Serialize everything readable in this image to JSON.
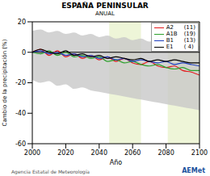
{
  "chart_data": {
    "type": "line",
    "title": "ESPAÑA PENINSULAR",
    "subtitle": "ANUAL",
    "x_label": "Año",
    "y_label": "Cambio de la precipitación (%)",
    "x": [
      2000,
      2005,
      2010,
      2015,
      2020,
      2025,
      2030,
      2035,
      2040,
      2045,
      2050,
      2055,
      2060,
      2065,
      2070,
      2075,
      2080,
      2085,
      2090,
      2095,
      2100
    ],
    "series": [
      {
        "name": "A2",
        "count_label": "(11)",
        "color": "#e41a1c",
        "values": [
          0,
          2,
          -2,
          1,
          -3,
          -1,
          -4,
          -2,
          -5,
          -3,
          -6,
          -4,
          -7,
          -8,
          -6,
          -9,
          -10,
          -9,
          -12,
          -13,
          -15
        ]
      },
      {
        "name": "A1B",
        "count_label": "(19)",
        "color": "#2ca02c",
        "values": [
          0,
          -1,
          1,
          -2,
          0,
          -3,
          -2,
          -4,
          -3,
          -6,
          -5,
          -7,
          -6,
          -8,
          -9,
          -8,
          -10,
          -11,
          -10,
          -12,
          -12
        ]
      },
      {
        "name": "B1",
        "count_label": "(13)",
        "color": "#1f3fbf",
        "values": [
          0,
          1,
          -1,
          0,
          -2,
          -1,
          -3,
          -2,
          -4,
          -3,
          -5,
          -4,
          -6,
          -5,
          -6,
          -7,
          -6,
          -8,
          -7,
          -8,
          -9
        ]
      },
      {
        "name": "E1",
        "count_label": "( 4)",
        "color": "#000000",
        "values": [
          0,
          2,
          0,
          -1,
          1,
          -2,
          -1,
          -3,
          -2,
          -4,
          -3,
          -4,
          -5,
          -4,
          -6,
          -5,
          -6,
          -5,
          -6,
          -7,
          -7
        ]
      }
    ],
    "band_low": [
      -18,
      -20,
      -19,
      -22,
      -21,
      -24,
      -23,
      -25,
      -26,
      -27,
      -28,
      -29,
      -30,
      -31,
      -32,
      -33,
      -34,
      -35,
      -36,
      -37,
      -38
    ],
    "band_high": [
      14,
      15,
      13,
      14,
      12,
      13,
      11,
      12,
      10,
      11,
      9,
      10,
      8,
      9,
      7,
      8,
      6,
      7,
      5,
      6,
      4
    ],
    "periods": [
      [
        2046,
        2065
      ],
      [
        2081,
        2100
      ]
    ],
    "hline": 0,
    "xlim": [
      2000,
      2100
    ],
    "xticks": [
      2000,
      2020,
      2040,
      2060,
      2080,
      2100
    ],
    "ylim": [
      -60,
      20
    ],
    "yticks": [
      -60,
      -40,
      -20,
      0,
      20
    ],
    "grid": false,
    "legend": "upper right",
    "footer": {
      "left": "Agencia Estatal de Meteorología",
      "right": "AEMet"
    }
  }
}
